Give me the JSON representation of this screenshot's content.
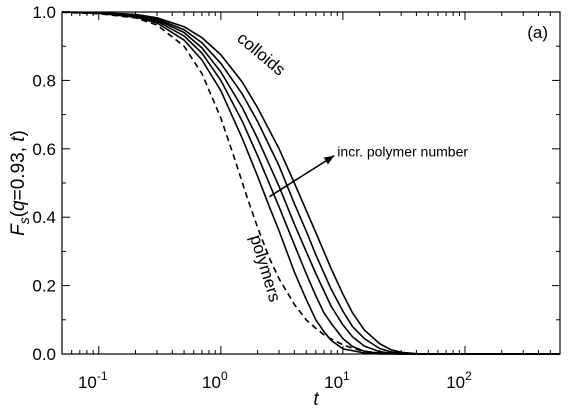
{
  "chart_data": {
    "type": "line",
    "panel_label": "(a)",
    "xlabel": "t",
    "ylabel": {
      "base": "F",
      "subscript": "s",
      "open": "(",
      "q": "q",
      "q_value": "=0.93, ",
      "t": "t",
      "close": ")"
    },
    "xscale": "log",
    "xlim": [
      0.05,
      600
    ],
    "ylim": [
      0.0,
      1.0
    ],
    "xticks": [
      {
        "value": 0.1,
        "base": "10",
        "exp": "-1"
      },
      {
        "value": 1,
        "base": "10",
        "exp": "0"
      },
      {
        "value": 10,
        "base": "10",
        "exp": "1"
      },
      {
        "value": 100,
        "base": "10",
        "exp": "2"
      }
    ],
    "yticks": [
      {
        "value": 0.0,
        "label": "0.0"
      },
      {
        "value": 0.2,
        "label": "0.2"
      },
      {
        "value": 0.4,
        "label": "0.4"
      },
      {
        "value": 0.6,
        "label": "0.6"
      },
      {
        "value": 0.8,
        "label": "0.8"
      },
      {
        "value": 1.0,
        "label": "1.0"
      }
    ],
    "annotations": {
      "colloids": "colloids",
      "polymers": "polymers",
      "arrow_text": "incr. polymer number"
    },
    "series": [
      {
        "style": "dashed",
        "x": [
          0.05,
          0.1,
          0.2,
          0.3,
          0.5,
          0.7,
          1.0,
          1.3,
          1.6,
          2.0,
          2.5,
          3.0,
          4.0,
          5.0,
          6.0,
          7.0,
          8.0,
          10,
          12,
          15,
          20,
          30,
          50,
          100,
          200,
          600
        ],
        "y": [
          0.999,
          0.995,
          0.983,
          0.962,
          0.9,
          0.82,
          0.69,
          0.57,
          0.47,
          0.37,
          0.28,
          0.22,
          0.145,
          0.1,
          0.075,
          0.056,
          0.044,
          0.027,
          0.017,
          0.008,
          0.003,
          0.0,
          0.0,
          0.0,
          0.0,
          0.0
        ]
      },
      {
        "style": "solid",
        "x": [
          0.05,
          0.1,
          0.2,
          0.3,
          0.5,
          0.7,
          1.0,
          1.5,
          2.0,
          2.5,
          3.0,
          4.0,
          5.0,
          6.0,
          7.0,
          8.0,
          10,
          15,
          20,
          30,
          50,
          600
        ],
        "y": [
          1.0,
          0.996,
          0.985,
          0.968,
          0.918,
          0.86,
          0.77,
          0.63,
          0.52,
          0.43,
          0.36,
          0.24,
          0.16,
          0.1,
          0.065,
          0.04,
          0.015,
          0.003,
          0.0,
          0.0,
          0.0,
          0.0
        ]
      },
      {
        "style": "solid",
        "x": [
          0.05,
          0.1,
          0.2,
          0.3,
          0.5,
          0.7,
          1.0,
          1.5,
          2.0,
          3.0,
          4.0,
          5.0,
          6.0,
          7.0,
          8.0,
          10,
          12,
          15,
          20,
          30,
          50,
          600
        ],
        "y": [
          1.0,
          0.997,
          0.988,
          0.973,
          0.93,
          0.88,
          0.8,
          0.68,
          0.58,
          0.43,
          0.32,
          0.235,
          0.17,
          0.12,
          0.09,
          0.045,
          0.022,
          0.008,
          0.002,
          0.0,
          0.0,
          0.0
        ]
      },
      {
        "style": "solid",
        "x": [
          0.05,
          0.1,
          0.2,
          0.3,
          0.5,
          0.7,
          1.0,
          1.5,
          2.0,
          3.0,
          4.0,
          5.0,
          6.0,
          8.0,
          10,
          12,
          15,
          20,
          25,
          30,
          50,
          600
        ],
        "y": [
          1.0,
          0.997,
          0.99,
          0.977,
          0.94,
          0.895,
          0.825,
          0.72,
          0.63,
          0.49,
          0.38,
          0.3,
          0.235,
          0.14,
          0.085,
          0.05,
          0.023,
          0.007,
          0.002,
          0.0,
          0.0,
          0.0
        ]
      },
      {
        "style": "solid",
        "x": [
          0.05,
          0.1,
          0.2,
          0.3,
          0.5,
          0.7,
          1.0,
          1.5,
          2.0,
          3.0,
          4.0,
          5.0,
          6.0,
          8.0,
          10,
          12,
          15,
          20,
          25,
          30,
          40,
          50,
          600
        ],
        "y": [
          1.0,
          0.998,
          0.991,
          0.98,
          0.948,
          0.91,
          0.85,
          0.76,
          0.68,
          0.55,
          0.44,
          0.36,
          0.29,
          0.19,
          0.125,
          0.08,
          0.045,
          0.016,
          0.006,
          0.002,
          0.0,
          0.0,
          0.0
        ]
      },
      {
        "style": "solid",
        "x": [
          0.05,
          0.1,
          0.2,
          0.3,
          0.5,
          0.7,
          1.0,
          1.5,
          2.0,
          3.0,
          4.0,
          5.0,
          6.0,
          8.0,
          10,
          12,
          15,
          20,
          25,
          30,
          40,
          50,
          600
        ],
        "y": [
          1.0,
          0.998,
          0.993,
          0.983,
          0.957,
          0.925,
          0.875,
          0.795,
          0.72,
          0.6,
          0.5,
          0.42,
          0.355,
          0.25,
          0.175,
          0.12,
          0.07,
          0.03,
          0.012,
          0.005,
          0.001,
          0.0,
          0.0
        ]
      }
    ],
    "arrow": {
      "from": {
        "x": 2.5,
        "y": 0.46
      },
      "to": {
        "x": 8.5,
        "y": 0.58
      }
    },
    "legend": "none",
    "grid": false
  }
}
